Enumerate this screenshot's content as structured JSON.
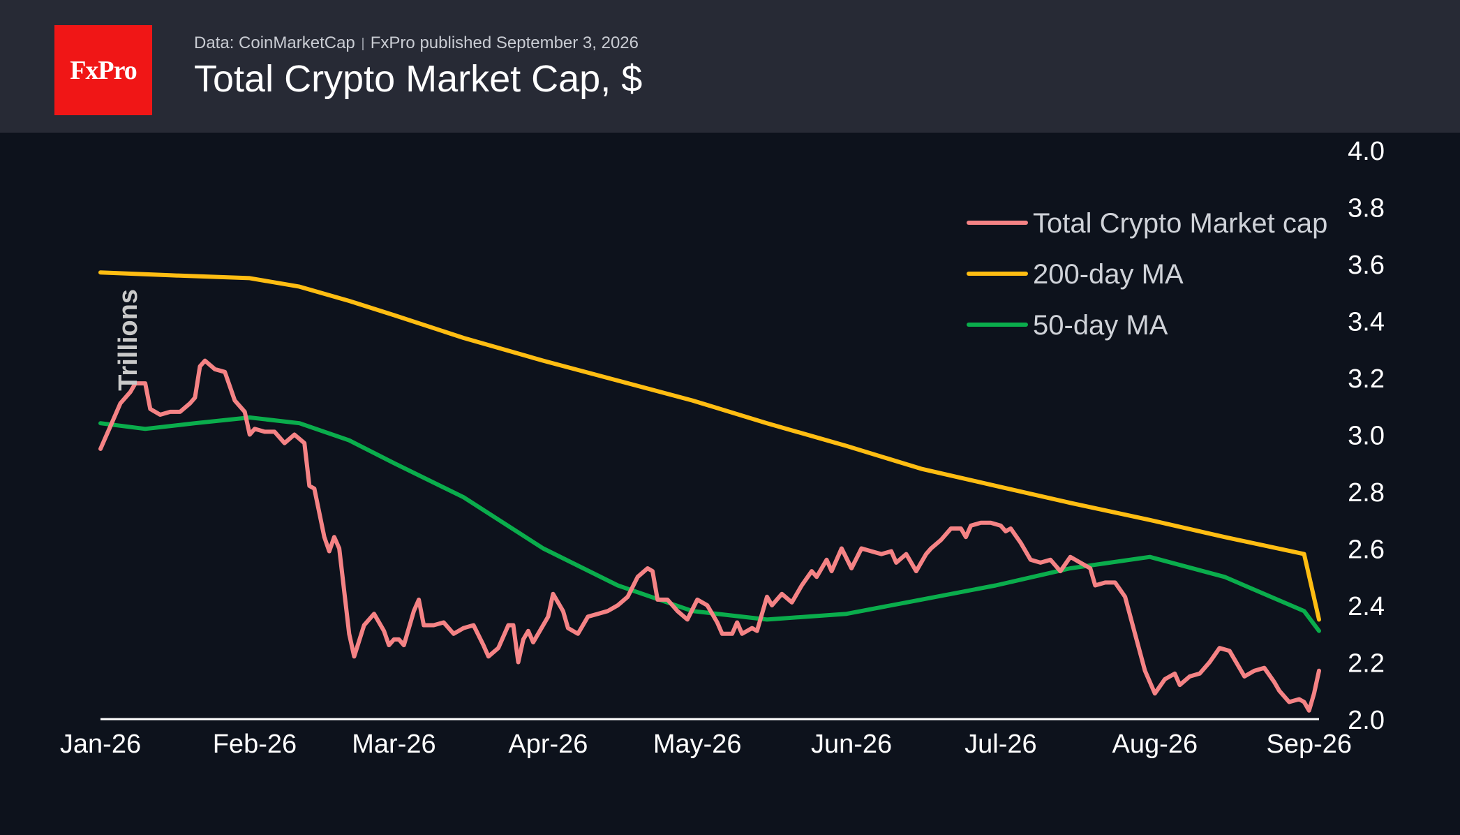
{
  "header": {
    "logo_text": "FxPro",
    "source": "Data: CoinMarketCap",
    "publisher": "FxPro published September 3, 2026",
    "title": "Total Crypto Market Cap, $"
  },
  "colors": {
    "background": "#0d121c",
    "header": "#272a35",
    "logo": "#f01616",
    "market_cap": "#f58385",
    "ma200": "#ffbd12",
    "ma50": "#0aad4c"
  },
  "chart_data": {
    "type": "line",
    "title": "Total Crypto Market Cap, $",
    "ylabel": "Trillions",
    "ylim": [
      2.0,
      4.0
    ],
    "y_ticks": [
      "2.0",
      "2.2",
      "2.4",
      "2.6",
      "2.8",
      "3.0",
      "3.2",
      "3.4",
      "3.6",
      "3.8",
      "4.0"
    ],
    "x_ticks": [
      "Jan-26",
      "Feb-26",
      "Mar-26",
      "Apr-26",
      "May-26",
      "Jun-26",
      "Jul-26",
      "Aug-26",
      "Sep-26"
    ],
    "xlim": [
      "2026-01-01",
      "2026-09-03"
    ],
    "y_axis_side": "right",
    "grid": false,
    "legend_position": "top-right",
    "series": [
      {
        "name": "Total Crypto Market cap",
        "color": "#f58385",
        "points": [
          [
            "2026-01-01",
            2.95
          ],
          [
            "2026-01-03",
            3.03
          ],
          [
            "2026-01-05",
            3.11
          ],
          [
            "2026-01-07",
            3.15
          ],
          [
            "2026-01-08",
            3.18
          ],
          [
            "2026-01-10",
            3.18
          ],
          [
            "2026-01-11",
            3.09
          ],
          [
            "2026-01-13",
            3.07
          ],
          [
            "2026-01-15",
            3.08
          ],
          [
            "2026-01-17",
            3.08
          ],
          [
            "2026-01-19",
            3.11
          ],
          [
            "2026-01-20",
            3.13
          ],
          [
            "2026-01-21",
            3.24
          ],
          [
            "2026-01-22",
            3.26
          ],
          [
            "2026-01-24",
            3.23
          ],
          [
            "2026-01-26",
            3.22
          ],
          [
            "2026-01-28",
            3.12
          ],
          [
            "2026-01-30",
            3.08
          ],
          [
            "2026-01-31",
            3.0
          ],
          [
            "2026-02-01",
            3.02
          ],
          [
            "2026-02-03",
            3.01
          ],
          [
            "2026-02-05",
            3.01
          ],
          [
            "2026-02-07",
            2.97
          ],
          [
            "2026-02-09",
            3.0
          ],
          [
            "2026-02-11",
            2.97
          ],
          [
            "2026-02-12",
            2.82
          ],
          [
            "2026-02-13",
            2.81
          ],
          [
            "2026-02-15",
            2.64
          ],
          [
            "2026-02-16",
            2.59
          ],
          [
            "2026-02-17",
            2.64
          ],
          [
            "2026-02-18",
            2.6
          ],
          [
            "2026-02-19",
            2.45
          ],
          [
            "2026-02-20",
            2.3
          ],
          [
            "2026-02-21",
            2.22
          ],
          [
            "2026-02-23",
            2.33
          ],
          [
            "2026-02-25",
            2.37
          ],
          [
            "2026-02-27",
            2.31
          ],
          [
            "2026-02-28",
            2.26
          ],
          [
            "2026-03-01",
            2.28
          ],
          [
            "2026-03-02",
            2.28
          ],
          [
            "2026-03-03",
            2.26
          ],
          [
            "2026-03-05",
            2.38
          ],
          [
            "2026-03-06",
            2.42
          ],
          [
            "2026-03-07",
            2.33
          ],
          [
            "2026-03-09",
            2.33
          ],
          [
            "2026-03-11",
            2.34
          ],
          [
            "2026-03-13",
            2.3
          ],
          [
            "2026-03-15",
            2.32
          ],
          [
            "2026-03-17",
            2.33
          ],
          [
            "2026-03-19",
            2.26
          ],
          [
            "2026-03-20",
            2.22
          ],
          [
            "2026-03-22",
            2.25
          ],
          [
            "2026-03-24",
            2.33
          ],
          [
            "2026-03-25",
            2.33
          ],
          [
            "2026-03-26",
            2.2
          ],
          [
            "2026-03-27",
            2.28
          ],
          [
            "2026-03-28",
            2.31
          ],
          [
            "2026-03-29",
            2.27
          ],
          [
            "2026-03-31",
            2.33
          ],
          [
            "2026-04-01",
            2.36
          ],
          [
            "2026-04-02",
            2.44
          ],
          [
            "2026-04-04",
            2.38
          ],
          [
            "2026-04-05",
            2.32
          ],
          [
            "2026-04-07",
            2.3
          ],
          [
            "2026-04-09",
            2.36
          ],
          [
            "2026-04-11",
            2.37
          ],
          [
            "2026-04-13",
            2.38
          ],
          [
            "2026-04-15",
            2.4
          ],
          [
            "2026-04-17",
            2.43
          ],
          [
            "2026-04-19",
            2.5
          ],
          [
            "2026-04-21",
            2.53
          ],
          [
            "2026-04-22",
            2.52
          ],
          [
            "2026-04-23",
            2.42
          ],
          [
            "2026-04-25",
            2.42
          ],
          [
            "2026-04-27",
            2.38
          ],
          [
            "2026-04-29",
            2.35
          ],
          [
            "2026-05-01",
            2.42
          ],
          [
            "2026-05-03",
            2.4
          ],
          [
            "2026-05-05",
            2.34
          ],
          [
            "2026-05-06",
            2.3
          ],
          [
            "2026-05-08",
            2.3
          ],
          [
            "2026-05-09",
            2.34
          ],
          [
            "2026-05-10",
            2.3
          ],
          [
            "2026-05-12",
            2.32
          ],
          [
            "2026-05-13",
            2.31
          ],
          [
            "2026-05-15",
            2.43
          ],
          [
            "2026-05-16",
            2.4
          ],
          [
            "2026-05-18",
            2.44
          ],
          [
            "2026-05-20",
            2.41
          ],
          [
            "2026-05-22",
            2.47
          ],
          [
            "2026-05-24",
            2.52
          ],
          [
            "2026-05-25",
            2.5
          ],
          [
            "2026-05-27",
            2.56
          ],
          [
            "2026-05-28",
            2.52
          ],
          [
            "2026-05-30",
            2.6
          ],
          [
            "2026-06-01",
            2.53
          ],
          [
            "2026-06-03",
            2.6
          ],
          [
            "2026-06-05",
            2.59
          ],
          [
            "2026-06-07",
            2.58
          ],
          [
            "2026-06-09",
            2.59
          ],
          [
            "2026-06-10",
            2.55
          ],
          [
            "2026-06-12",
            2.58
          ],
          [
            "2026-06-14",
            2.52
          ],
          [
            "2026-06-16",
            2.58
          ],
          [
            "2026-06-17",
            2.6
          ],
          [
            "2026-06-19",
            2.63
          ],
          [
            "2026-06-21",
            2.67
          ],
          [
            "2026-06-23",
            2.67
          ],
          [
            "2026-06-24",
            2.64
          ],
          [
            "2026-06-25",
            2.68
          ],
          [
            "2026-06-27",
            2.69
          ],
          [
            "2026-06-29",
            2.69
          ],
          [
            "2026-07-01",
            2.68
          ],
          [
            "2026-07-02",
            2.66
          ],
          [
            "2026-07-03",
            2.67
          ],
          [
            "2026-07-05",
            2.62
          ],
          [
            "2026-07-07",
            2.56
          ],
          [
            "2026-07-09",
            2.55
          ],
          [
            "2026-07-11",
            2.56
          ],
          [
            "2026-07-13",
            2.52
          ],
          [
            "2026-07-15",
            2.57
          ],
          [
            "2026-07-17",
            2.55
          ],
          [
            "2026-07-19",
            2.53
          ],
          [
            "2026-07-20",
            2.47
          ],
          [
            "2026-07-22",
            2.48
          ],
          [
            "2026-07-24",
            2.48
          ],
          [
            "2026-07-26",
            2.43
          ],
          [
            "2026-07-28",
            2.3
          ],
          [
            "2026-07-30",
            2.17
          ],
          [
            "2026-08-01",
            2.09
          ],
          [
            "2026-08-03",
            2.14
          ],
          [
            "2026-08-05",
            2.16
          ],
          [
            "2026-08-06",
            2.12
          ],
          [
            "2026-08-08",
            2.15
          ],
          [
            "2026-08-10",
            2.16
          ],
          [
            "2026-08-12",
            2.2
          ],
          [
            "2026-08-14",
            2.25
          ],
          [
            "2026-08-16",
            2.24
          ],
          [
            "2026-08-18",
            2.18
          ],
          [
            "2026-08-19",
            2.15
          ],
          [
            "2026-08-21",
            2.17
          ],
          [
            "2026-08-23",
            2.18
          ],
          [
            "2026-08-25",
            2.13
          ],
          [
            "2026-08-26",
            2.1
          ],
          [
            "2026-08-28",
            2.06
          ],
          [
            "2026-08-30",
            2.07
          ],
          [
            "2026-08-31",
            2.06
          ],
          [
            "2026-09-01",
            2.03
          ],
          [
            "2026-09-02",
            2.09
          ],
          [
            "2026-09-03",
            2.17
          ]
        ]
      },
      {
        "name": "200-day MA",
        "color": "#ffbd12",
        "points": [
          [
            "2026-01-01",
            3.57
          ],
          [
            "2026-01-15",
            3.56
          ],
          [
            "2026-01-31",
            3.55
          ],
          [
            "2026-02-10",
            3.52
          ],
          [
            "2026-02-20",
            3.47
          ],
          [
            "2026-03-01",
            3.42
          ],
          [
            "2026-03-15",
            3.34
          ],
          [
            "2026-03-31",
            3.26
          ],
          [
            "2026-04-15",
            3.19
          ],
          [
            "2026-04-30",
            3.12
          ],
          [
            "2026-05-15",
            3.04
          ],
          [
            "2026-05-31",
            2.96
          ],
          [
            "2026-06-15",
            2.88
          ],
          [
            "2026-06-30",
            2.82
          ],
          [
            "2026-07-15",
            2.76
          ],
          [
            "2026-07-31",
            2.7
          ],
          [
            "2026-08-15",
            2.64
          ],
          [
            "2026-08-31",
            2.58
          ],
          [
            "2026-09-03",
            2.35
          ]
        ]
      },
      {
        "name": "50-day MA",
        "color": "#0aad4c",
        "points": [
          [
            "2026-01-01",
            3.04
          ],
          [
            "2026-01-10",
            3.02
          ],
          [
            "2026-01-20",
            3.04
          ],
          [
            "2026-01-31",
            3.06
          ],
          [
            "2026-02-10",
            3.04
          ],
          [
            "2026-02-20",
            2.98
          ],
          [
            "2026-03-01",
            2.9
          ],
          [
            "2026-03-15",
            2.78
          ],
          [
            "2026-03-31",
            2.6
          ],
          [
            "2026-04-15",
            2.47
          ],
          [
            "2026-04-30",
            2.38
          ],
          [
            "2026-05-15",
            2.35
          ],
          [
            "2026-05-31",
            2.37
          ],
          [
            "2026-06-15",
            2.42
          ],
          [
            "2026-06-30",
            2.47
          ],
          [
            "2026-07-15",
            2.53
          ],
          [
            "2026-07-31",
            2.57
          ],
          [
            "2026-08-15",
            2.5
          ],
          [
            "2026-08-31",
            2.38
          ],
          [
            "2026-09-03",
            2.31
          ]
        ]
      }
    ]
  }
}
